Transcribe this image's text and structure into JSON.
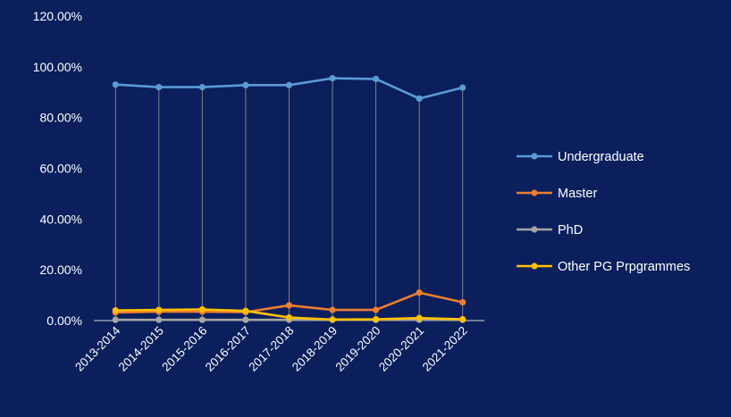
{
  "chart_data": {
    "type": "line",
    "title": "",
    "xlabel": "",
    "ylabel": "",
    "categories": [
      "2013-2014",
      "2014-2015",
      "2015-2016",
      "2016-2017",
      "2017-2018",
      "2018-2019",
      "2019-2020",
      "2020-2021",
      "2021-2022"
    ],
    "y_ticks": [
      "0.00%",
      "20.00%",
      "40.00%",
      "60.00%",
      "80.00%",
      "100.00%",
      "120.00%"
    ],
    "ylim": [
      0,
      120
    ],
    "grid": "vertical drop lines",
    "legend_position": "right",
    "series": [
      {
        "name": "Undergraduate",
        "color": "#5b9bd5",
        "values": [
          93.0,
          92.0,
          92.0,
          92.8,
          92.8,
          95.5,
          95.2,
          87.5,
          91.8
        ]
      },
      {
        "name": "Master",
        "color": "#ed7d31",
        "values": [
          3.2,
          3.5,
          3.5,
          3.3,
          6.0,
          4.2,
          4.2,
          11.0,
          7.2
        ]
      },
      {
        "name": "PhD",
        "color": "#a5a5a5",
        "values": [
          0.3,
          0.3,
          0.3,
          0.3,
          0.3,
          0.3,
          0.3,
          0.3,
          0.3
        ]
      },
      {
        "name": "Other PG Prpgrammes",
        "color": "#ffc000",
        "values": [
          4.0,
          4.2,
          4.4,
          3.8,
          1.2,
          0.4,
          0.5,
          1.0,
          0.5
        ]
      }
    ]
  }
}
